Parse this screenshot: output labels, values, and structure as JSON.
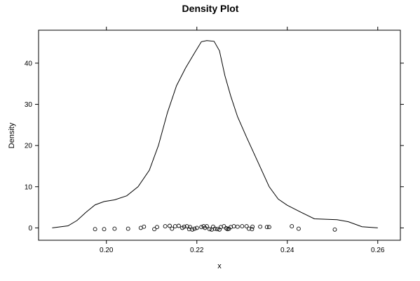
{
  "chart_data": {
    "type": "line",
    "title": "Density Plot",
    "xlabel": "x",
    "ylabel": "Density",
    "xlim": [
      0.185,
      0.265
    ],
    "ylim": [
      -3,
      48
    ],
    "x_ticks": [
      0.2,
      0.22,
      0.24,
      0.26
    ],
    "x_tick_labels": [
      "0.20",
      "0.22",
      "0.24",
      "0.26"
    ],
    "y_ticks": [
      0,
      10,
      20,
      30,
      40
    ],
    "y_tick_labels": [
      "0",
      "10",
      "20",
      "30",
      "40"
    ],
    "grid": false,
    "legend": "none",
    "colors": {
      "line": "#000000",
      "points": "#000000",
      "frame": "#000000"
    },
    "series": [
      {
        "type": "line",
        "x": [
          0.188,
          0.1915,
          0.1935,
          0.1955,
          0.1975,
          0.1995,
          0.2018,
          0.2045,
          0.207,
          0.2095,
          0.2115,
          0.2135,
          0.2155,
          0.2175,
          0.2195,
          0.221,
          0.2222,
          0.2238,
          0.225,
          0.2262,
          0.2275,
          0.229,
          0.231,
          0.2335,
          0.236,
          0.238,
          0.24,
          0.243,
          0.246,
          0.2485,
          0.251,
          0.2535,
          0.2565,
          0.26
        ],
        "y": [
          0.0,
          0.5,
          1.8,
          3.8,
          5.6,
          6.4,
          6.8,
          7.8,
          10.0,
          14.0,
          20.0,
          28.0,
          34.5,
          38.8,
          42.5,
          45.2,
          45.5,
          45.3,
          43.0,
          37.0,
          32.0,
          27.0,
          22.0,
          16.0,
          10.0,
          7.0,
          5.5,
          3.8,
          2.2,
          2.1,
          2.0,
          1.5,
          0.3,
          0.0
        ]
      },
      {
        "type": "scatter",
        "x": [
          0.1975,
          0.1995,
          0.2018,
          0.2048,
          0.2076,
          0.2083,
          0.2106,
          0.2112,
          0.213,
          0.214,
          0.2145,
          0.2152,
          0.216,
          0.2168,
          0.2172,
          0.2178,
          0.2183,
          0.2185,
          0.219,
          0.2195,
          0.22,
          0.221,
          0.2215,
          0.2218,
          0.2222,
          0.2228,
          0.2233,
          0.2236,
          0.224,
          0.2245,
          0.225,
          0.2253,
          0.226,
          0.2265,
          0.2268,
          0.2271,
          0.2275,
          0.2282,
          0.229,
          0.23,
          0.231,
          0.2315,
          0.2322,
          0.2323,
          0.234,
          0.2355,
          0.236,
          0.241,
          0.2425,
          0.2505
        ],
        "y": [
          -0.3,
          -0.3,
          -0.2,
          -0.2,
          0.0,
          0.3,
          -0.3,
          0.2,
          0.4,
          0.5,
          -0.2,
          0.4,
          0.5,
          0.0,
          0.3,
          0.4,
          -0.3,
          0.2,
          -0.4,
          -0.2,
          0.0,
          0.2,
          0.4,
          0.0,
          0.4,
          -0.3,
          -0.4,
          0.3,
          -0.2,
          -0.3,
          -0.4,
          0.2,
          0.4,
          -0.1,
          -0.3,
          -0.2,
          0.2,
          0.4,
          0.3,
          0.4,
          0.4,
          -0.2,
          -0.3,
          0.3,
          0.3,
          0.2,
          0.2,
          0.4,
          -0.2,
          -0.4
        ]
      }
    ]
  }
}
